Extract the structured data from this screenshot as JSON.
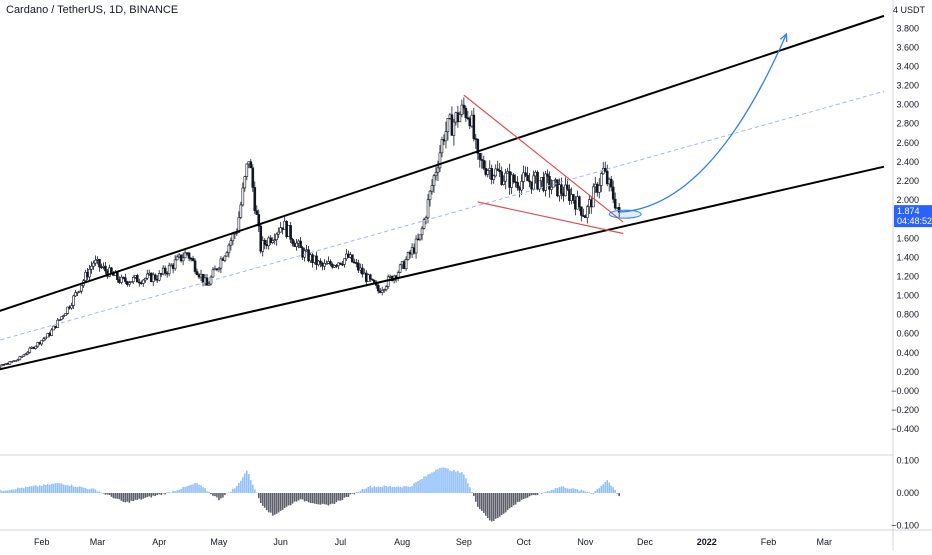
{
  "header": {
    "title": "Cardano / TetherUS, 1D, BINANCE"
  },
  "price_axis": {
    "currency": "USDT",
    "last_price": "1.874",
    "countdown": "04:48:52",
    "tick_labels": [
      "4.000",
      "3.800",
      "3.600",
      "3.400",
      "3.200",
      "3.000",
      "2.800",
      "2.600",
      "2.400",
      "2.200",
      "2.000",
      "1.600",
      "1.400",
      "1.200",
      "1.000",
      "0.800",
      "0.600",
      "0.400",
      "0.200",
      "−0.000",
      "−0.200",
      "−0.400"
    ]
  },
  "indicator_axis": {
    "tick_labels": [
      "0.100",
      "0.000",
      "−0.100"
    ]
  },
  "time_axis": {
    "tick_labels": [
      "Feb",
      "Mar",
      "Apr",
      "May",
      "Jun",
      "Jul",
      "Aug",
      "Sep",
      "Oct",
      "Nov",
      "Dec",
      "2022",
      "Feb",
      "Mar"
    ]
  },
  "colors": {
    "up": "#ffffff",
    "down": "#131722",
    "channel": "#000000",
    "midline": "#a3b8f0",
    "wedge": "#e04f4f",
    "arrow": "#2f80ed",
    "hist_pos": "#90bff9",
    "hist_neg": "#5d606b",
    "axis_text": "#131722",
    "price_tag": "#2962ff",
    "separator": "#d1d4dc"
  },
  "chart_data": [
    {
      "type": "candlestick",
      "title": "Cardano / TetherUS, 1D, BINANCE",
      "x_range": [
        "2021-01-01",
        "2022-03-31"
      ],
      "ylim": [
        -0.4,
        4.0
      ],
      "y_unit": "USDT",
      "ohlc_key_points": [
        [
          "2021-01-01",
          0.18
        ],
        [
          "2021-01-20",
          0.33
        ],
        [
          "2021-02-05",
          0.6
        ],
        [
          "2021-02-15",
          0.9
        ],
        [
          "2021-02-27",
          1.35
        ],
        [
          "2021-03-13",
          1.15
        ],
        [
          "2021-04-01",
          1.2
        ],
        [
          "2021-04-15",
          1.45
        ],
        [
          "2021-04-25",
          1.1
        ],
        [
          "2021-05-10",
          1.7
        ],
        [
          "2021-05-16",
          2.45
        ],
        [
          "2021-05-22",
          1.5
        ],
        [
          "2021-06-02",
          1.75
        ],
        [
          "2021-06-12",
          1.45
        ],
        [
          "2021-06-22",
          1.3
        ],
        [
          "2021-07-05",
          1.4
        ],
        [
          "2021-07-20",
          1.05
        ],
        [
          "2021-08-01",
          1.3
        ],
        [
          "2021-08-10",
          1.6
        ],
        [
          "2021-08-22",
          2.7
        ],
        [
          "2021-09-01",
          2.95
        ],
        [
          "2021-09-04",
          2.9
        ],
        [
          "2021-09-08",
          2.4
        ],
        [
          "2021-09-25",
          2.2
        ],
        [
          "2021-10-10",
          2.2
        ],
        [
          "2021-10-25",
          2.05
        ],
        [
          "2021-11-01",
          1.85
        ],
        [
          "2021-11-10",
          2.3
        ],
        [
          "2021-11-18",
          1.874
        ]
      ],
      "last_price": 1.874,
      "drawings": {
        "ascending_channel": {
          "upper": [
            [
              "2021-01-01",
              0.77
            ],
            [
              "2022-03-31",
              3.93
            ]
          ],
          "lower": [
            [
              "2021-01-01",
              0.18
            ],
            [
              "2022-03-31",
              2.35
            ]
          ],
          "middle_dashed": [
            [
              "2021-01-01",
              0.475
            ],
            [
              "2022-03-31",
              3.14
            ]
          ]
        },
        "falling_wedge": {
          "upper": [
            [
              "2021-09-01",
              3.1
            ],
            [
              "2021-11-20",
              1.77
            ]
          ],
          "lower": [
            [
              "2021-09-08",
              1.98
            ],
            [
              "2021-11-20",
              1.65
            ]
          ]
        },
        "projection_arrow": {
          "from": [
            "2021-11-18",
            1.874
          ],
          "to": [
            "2022-02-10",
            3.74
          ]
        }
      }
    },
    {
      "type": "histogram",
      "ylim": [
        -0.1,
        0.1
      ],
      "series_key_points": [
        [
          "2021-01-01",
          0.0
        ],
        [
          "2021-02-10",
          0.03
        ],
        [
          "2021-02-28",
          0.01
        ],
        [
          "2021-03-15",
          -0.03
        ],
        [
          "2021-04-05",
          0.0
        ],
        [
          "2021-04-20",
          0.03
        ],
        [
          "2021-05-01",
          -0.02
        ],
        [
          "2021-05-10",
          0.02
        ],
        [
          "2021-05-15",
          0.07
        ],
        [
          "2021-05-22",
          -0.03
        ],
        [
          "2021-05-28",
          -0.07
        ],
        [
          "2021-06-10",
          -0.02
        ],
        [
          "2021-06-25",
          -0.04
        ],
        [
          "2021-07-15",
          0.02
        ],
        [
          "2021-08-05",
          0.02
        ],
        [
          "2021-08-20",
          0.08
        ],
        [
          "2021-09-01",
          0.06
        ],
        [
          "2021-09-08",
          -0.04
        ],
        [
          "2021-09-15",
          -0.09
        ],
        [
          "2021-09-30",
          -0.02
        ],
        [
          "2021-10-20",
          0.02
        ],
        [
          "2021-11-05",
          0.0
        ],
        [
          "2021-11-12",
          0.04
        ],
        [
          "2021-11-18",
          -0.01
        ]
      ]
    }
  ]
}
